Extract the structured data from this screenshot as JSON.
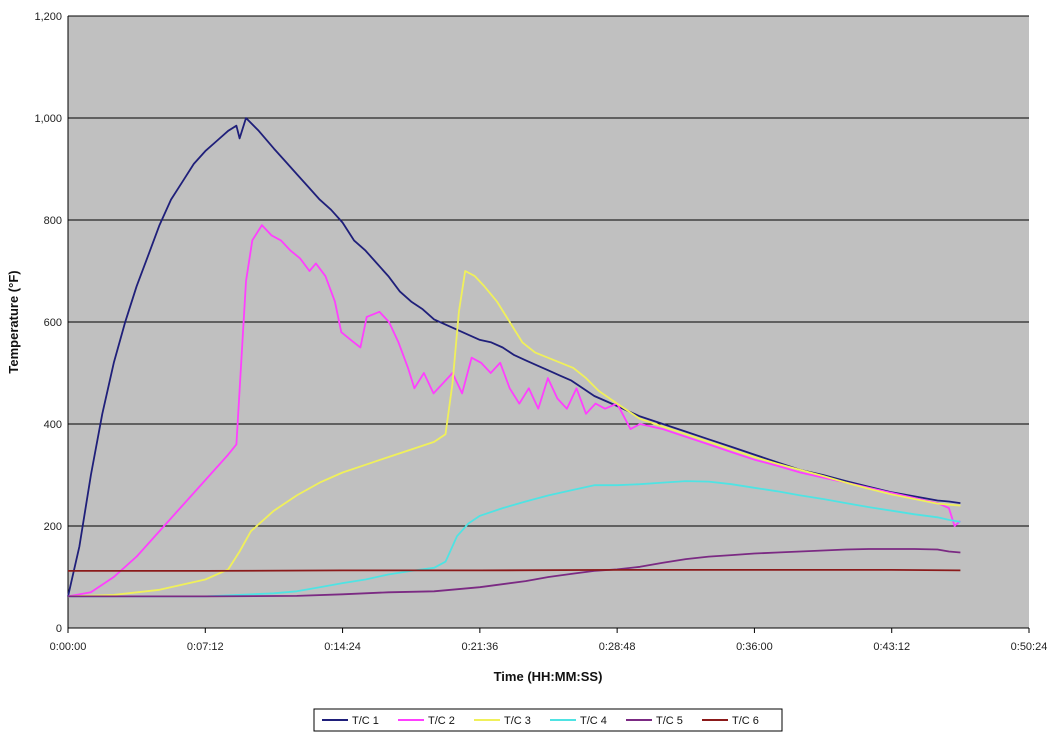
{
  "chart_data": {
    "type": "line",
    "title": "",
    "xlabel": "Time (HH:MM:SS)",
    "ylabel": "Temperature (°F)",
    "ylim": [
      0,
      1200
    ],
    "xlim": [
      "0:00:00",
      "0:50:24"
    ],
    "grid": true,
    "legend_position": "bottom",
    "plot_background": "#c0c0c0",
    "y_ticks": [
      "0",
      "200",
      "400",
      "600",
      "800",
      "1,000",
      "1,200"
    ],
    "x_ticks": [
      "0:00:00",
      "0:07:12",
      "0:14:24",
      "0:21:36",
      "0:28:48",
      "0:36:00",
      "0:43:12",
      "0:50:24"
    ],
    "series": [
      {
        "name": "T/C 1",
        "color": "#1f1f7a",
        "points": [
          [
            "0:00:00",
            62
          ],
          [
            "0:00:36",
            160
          ],
          [
            "0:01:12",
            300
          ],
          [
            "0:01:48",
            420
          ],
          [
            "0:02:24",
            520
          ],
          [
            "0:03:00",
            600
          ],
          [
            "0:03:36",
            670
          ],
          [
            "0:04:12",
            730
          ],
          [
            "0:04:48",
            790
          ],
          [
            "0:05:24",
            840
          ],
          [
            "0:06:00",
            875
          ],
          [
            "0:06:36",
            910
          ],
          [
            "0:07:12",
            935
          ],
          [
            "0:07:48",
            955
          ],
          [
            "0:08:24",
            975
          ],
          [
            "0:08:50",
            985
          ],
          [
            "0:09:00",
            960
          ],
          [
            "0:09:20",
            1000
          ],
          [
            "0:10:00",
            975
          ],
          [
            "0:10:48",
            940
          ],
          [
            "0:11:24",
            915
          ],
          [
            "0:12:00",
            890
          ],
          [
            "0:12:36",
            865
          ],
          [
            "0:13:12",
            840
          ],
          [
            "0:13:48",
            820
          ],
          [
            "0:14:24",
            795
          ],
          [
            "0:15:00",
            760
          ],
          [
            "0:15:36",
            740
          ],
          [
            "0:16:12",
            715
          ],
          [
            "0:16:48",
            690
          ],
          [
            "0:17:24",
            660
          ],
          [
            "0:18:00",
            640
          ],
          [
            "0:18:36",
            625
          ],
          [
            "0:19:12",
            605
          ],
          [
            "0:19:48",
            595
          ],
          [
            "0:20:24",
            585
          ],
          [
            "0:21:00",
            575
          ],
          [
            "0:21:36",
            565
          ],
          [
            "0:22:12",
            560
          ],
          [
            "0:22:48",
            550
          ],
          [
            "0:23:24",
            535
          ],
          [
            "0:24:00",
            525
          ],
          [
            "0:24:36",
            515
          ],
          [
            "0:25:12",
            505
          ],
          [
            "0:25:48",
            495
          ],
          [
            "0:26:24",
            485
          ],
          [
            "0:27:00",
            470
          ],
          [
            "0:27:36",
            455
          ],
          [
            "0:28:12",
            445
          ],
          [
            "0:28:48",
            435
          ],
          [
            "0:30:00",
            415
          ],
          [
            "0:31:12",
            400
          ],
          [
            "0:32:24",
            385
          ],
          [
            "0:33:36",
            370
          ],
          [
            "0:34:48",
            355
          ],
          [
            "0:36:00",
            340
          ],
          [
            "0:37:12",
            325
          ],
          [
            "0:38:24",
            310
          ],
          [
            "0:39:36",
            300
          ],
          [
            "0:40:48",
            288
          ],
          [
            "0:42:00",
            277
          ],
          [
            "0:43:12",
            266
          ],
          [
            "0:44:24",
            258
          ],
          [
            "0:45:36",
            250
          ],
          [
            "0:46:12",
            248
          ],
          [
            "0:46:48",
            245
          ]
        ]
      },
      {
        "name": "T/C 2",
        "color": "#ff3fff",
        "points": [
          [
            "0:00:00",
            62
          ],
          [
            "0:01:12",
            70
          ],
          [
            "0:02:24",
            100
          ],
          [
            "0:03:36",
            140
          ],
          [
            "0:04:48",
            190
          ],
          [
            "0:06:00",
            240
          ],
          [
            "0:07:12",
            290
          ],
          [
            "0:08:24",
            340
          ],
          [
            "0:08:50",
            360
          ],
          [
            "0:09:05",
            520
          ],
          [
            "0:09:20",
            680
          ],
          [
            "0:09:40",
            760
          ],
          [
            "0:10:10",
            790
          ],
          [
            "0:10:40",
            770
          ],
          [
            "0:11:10",
            760
          ],
          [
            "0:11:40",
            740
          ],
          [
            "0:12:10",
            725
          ],
          [
            "0:12:40",
            700
          ],
          [
            "0:13:00",
            715
          ],
          [
            "0:13:30",
            690
          ],
          [
            "0:14:00",
            640
          ],
          [
            "0:14:20",
            580
          ],
          [
            "0:14:50",
            565
          ],
          [
            "0:15:20",
            550
          ],
          [
            "0:15:40",
            610
          ],
          [
            "0:16:20",
            620
          ],
          [
            "0:16:50",
            600
          ],
          [
            "0:17:20",
            560
          ],
          [
            "0:17:50",
            510
          ],
          [
            "0:18:10",
            470
          ],
          [
            "0:18:40",
            500
          ],
          [
            "0:19:10",
            460
          ],
          [
            "0:19:40",
            480
          ],
          [
            "0:20:10",
            500
          ],
          [
            "0:20:40",
            460
          ],
          [
            "0:21:10",
            530
          ],
          [
            "0:21:40",
            520
          ],
          [
            "0:22:10",
            500
          ],
          [
            "0:22:40",
            520
          ],
          [
            "0:23:10",
            470
          ],
          [
            "0:23:40",
            440
          ],
          [
            "0:24:10",
            470
          ],
          [
            "0:24:40",
            430
          ],
          [
            "0:25:10",
            490
          ],
          [
            "0:25:40",
            450
          ],
          [
            "0:26:10",
            430
          ],
          [
            "0:26:40",
            470
          ],
          [
            "0:27:10",
            420
          ],
          [
            "0:27:40",
            440
          ],
          [
            "0:28:10",
            430
          ],
          [
            "0:28:48",
            440
          ],
          [
            "0:29:30",
            390
          ],
          [
            "0:30:00",
            400
          ],
          [
            "0:31:12",
            390
          ],
          [
            "0:32:24",
            375
          ],
          [
            "0:33:36",
            360
          ],
          [
            "0:34:48",
            345
          ],
          [
            "0:36:00",
            330
          ],
          [
            "0:37:12",
            318
          ],
          [
            "0:38:24",
            305
          ],
          [
            "0:39:36",
            295
          ],
          [
            "0:40:48",
            285
          ],
          [
            "0:42:00",
            275
          ],
          [
            "0:43:12",
            265
          ],
          [
            "0:44:24",
            255
          ],
          [
            "0:45:36",
            245
          ],
          [
            "0:46:12",
            235
          ],
          [
            "0:46:30",
            200
          ],
          [
            "0:46:48",
            210
          ]
        ]
      },
      {
        "name": "T/C 3",
        "color": "#f0f05a",
        "points": [
          [
            "0:00:00",
            62
          ],
          [
            "0:02:24",
            65
          ],
          [
            "0:04:48",
            75
          ],
          [
            "0:07:12",
            95
          ],
          [
            "0:08:24",
            115
          ],
          [
            "0:09:00",
            150
          ],
          [
            "0:09:36",
            190
          ],
          [
            "0:10:48",
            230
          ],
          [
            "0:12:00",
            260
          ],
          [
            "0:13:12",
            285
          ],
          [
            "0:14:24",
            305
          ],
          [
            "0:15:36",
            320
          ],
          [
            "0:16:48",
            335
          ],
          [
            "0:18:00",
            350
          ],
          [
            "0:19:12",
            365
          ],
          [
            "0:19:48",
            380
          ],
          [
            "0:20:10",
            480
          ],
          [
            "0:20:30",
            620
          ],
          [
            "0:20:50",
            700
          ],
          [
            "0:21:20",
            690
          ],
          [
            "0:21:50",
            670
          ],
          [
            "0:22:30",
            640
          ],
          [
            "0:23:10",
            600
          ],
          [
            "0:23:50",
            560
          ],
          [
            "0:24:30",
            540
          ],
          [
            "0:25:10",
            530
          ],
          [
            "0:25:50",
            520
          ],
          [
            "0:26:30",
            510
          ],
          [
            "0:27:10",
            490
          ],
          [
            "0:27:50",
            465
          ],
          [
            "0:28:48",
            440
          ],
          [
            "0:30:00",
            410
          ],
          [
            "0:31:12",
            395
          ],
          [
            "0:32:24",
            380
          ],
          [
            "0:33:36",
            365
          ],
          [
            "0:34:48",
            350
          ],
          [
            "0:36:00",
            335
          ],
          [
            "0:37:12",
            322
          ],
          [
            "0:38:24",
            310
          ],
          [
            "0:39:36",
            298
          ],
          [
            "0:40:48",
            285
          ],
          [
            "0:42:00",
            273
          ],
          [
            "0:43:12",
            262
          ],
          [
            "0:44:24",
            253
          ],
          [
            "0:45:36",
            244
          ],
          [
            "0:46:48",
            240
          ]
        ]
      },
      {
        "name": "T/C 4",
        "color": "#4fe3e3",
        "points": [
          [
            "0:00:00",
            62
          ],
          [
            "0:07:12",
            62
          ],
          [
            "0:10:48",
            68
          ],
          [
            "0:12:00",
            72
          ],
          [
            "0:13:12",
            80
          ],
          [
            "0:14:24",
            88
          ],
          [
            "0:15:36",
            95
          ],
          [
            "0:16:48",
            105
          ],
          [
            "0:18:00",
            112
          ],
          [
            "0:19:12",
            118
          ],
          [
            "0:19:48",
            130
          ],
          [
            "0:20:24",
            180
          ],
          [
            "0:21:00",
            205
          ],
          [
            "0:21:36",
            220
          ],
          [
            "0:22:48",
            235
          ],
          [
            "0:24:00",
            248
          ],
          [
            "0:25:12",
            260
          ],
          [
            "0:26:24",
            270
          ],
          [
            "0:27:36",
            280
          ],
          [
            "0:28:48",
            280
          ],
          [
            "0:30:00",
            282
          ],
          [
            "0:31:12",
            285
          ],
          [
            "0:32:24",
            288
          ],
          [
            "0:33:36",
            287
          ],
          [
            "0:34:48",
            282
          ],
          [
            "0:36:00",
            275
          ],
          [
            "0:37:12",
            268
          ],
          [
            "0:38:24",
            260
          ],
          [
            "0:39:36",
            253
          ],
          [
            "0:40:48",
            245
          ],
          [
            "0:42:00",
            237
          ],
          [
            "0:43:12",
            230
          ],
          [
            "0:44:24",
            223
          ],
          [
            "0:45:36",
            217
          ],
          [
            "0:46:12",
            212
          ],
          [
            "0:46:48",
            208
          ]
        ]
      },
      {
        "name": "T/C 5",
        "color": "#7b2a83",
        "points": [
          [
            "0:00:00",
            62
          ],
          [
            "0:07:12",
            62
          ],
          [
            "0:12:00",
            63
          ],
          [
            "0:14:24",
            66
          ],
          [
            "0:16:48",
            70
          ],
          [
            "0:19:12",
            72
          ],
          [
            "0:21:36",
            80
          ],
          [
            "0:24:00",
            92
          ],
          [
            "0:25:12",
            100
          ],
          [
            "0:26:24",
            106
          ],
          [
            "0:27:36",
            112
          ],
          [
            "0:28:48",
            115
          ],
          [
            "0:30:00",
            120
          ],
          [
            "0:31:12",
            128
          ],
          [
            "0:32:24",
            135
          ],
          [
            "0:33:36",
            140
          ],
          [
            "0:34:48",
            143
          ],
          [
            "0:36:00",
            146
          ],
          [
            "0:37:12",
            148
          ],
          [
            "0:38:24",
            150
          ],
          [
            "0:39:36",
            152
          ],
          [
            "0:40:48",
            154
          ],
          [
            "0:42:00",
            155
          ],
          [
            "0:43:12",
            155
          ],
          [
            "0:44:24",
            155
          ],
          [
            "0:45:36",
            154
          ],
          [
            "0:46:12",
            150
          ],
          [
            "0:46:48",
            148
          ]
        ]
      },
      {
        "name": "T/C 6",
        "color": "#8b1a1a",
        "points": [
          [
            "0:00:00",
            112
          ],
          [
            "0:07:12",
            112
          ],
          [
            "0:14:24",
            113
          ],
          [
            "0:21:36",
            113
          ],
          [
            "0:28:48",
            114
          ],
          [
            "0:36:00",
            114
          ],
          [
            "0:43:12",
            114
          ],
          [
            "0:46:48",
            113
          ]
        ]
      }
    ]
  }
}
